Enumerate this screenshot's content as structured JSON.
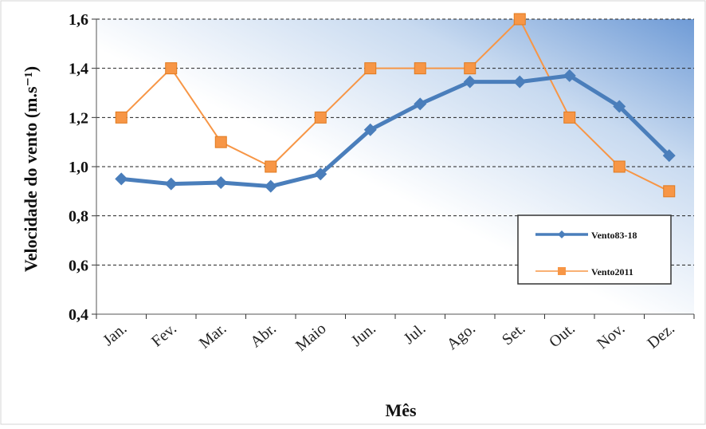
{
  "chart_data": {
    "type": "line",
    "ylabel": "Velocidade do vento (m.s⁻¹)",
    "xlabel": "Mês",
    "ylim": [
      0.4,
      1.6
    ],
    "yticks": [
      "0,4",
      "0,6",
      "0,8",
      "1,0",
      "1,2",
      "1,4",
      "1,6"
    ],
    "ytick_values": [
      0.4,
      0.6,
      0.8,
      1.0,
      1.2,
      1.4,
      1.6
    ],
    "grid": "horizontal dashed",
    "legend_position": "right",
    "categories": [
      "Jan.",
      "Fev.",
      "Mar.",
      "Abr.",
      "Maio",
      "Jun.",
      "Jul.",
      "Ago.",
      "Set.",
      "Out.",
      "Nov.",
      "Dez."
    ],
    "series": [
      {
        "name": "Vento83-18",
        "color": "#4a7ebb",
        "marker": "diamond",
        "values": [
          0.95,
          0.93,
          0.935,
          0.92,
          0.97,
          1.15,
          1.255,
          1.345,
          1.345,
          1.37,
          1.245,
          1.045
        ]
      },
      {
        "name": "Vento2011",
        "color": "#f79646",
        "marker": "square",
        "values": [
          1.2,
          1.4,
          1.1,
          1.0,
          1.2,
          1.4,
          1.4,
          1.4,
          1.6,
          1.2,
          1.0,
          0.9
        ]
      }
    ]
  }
}
